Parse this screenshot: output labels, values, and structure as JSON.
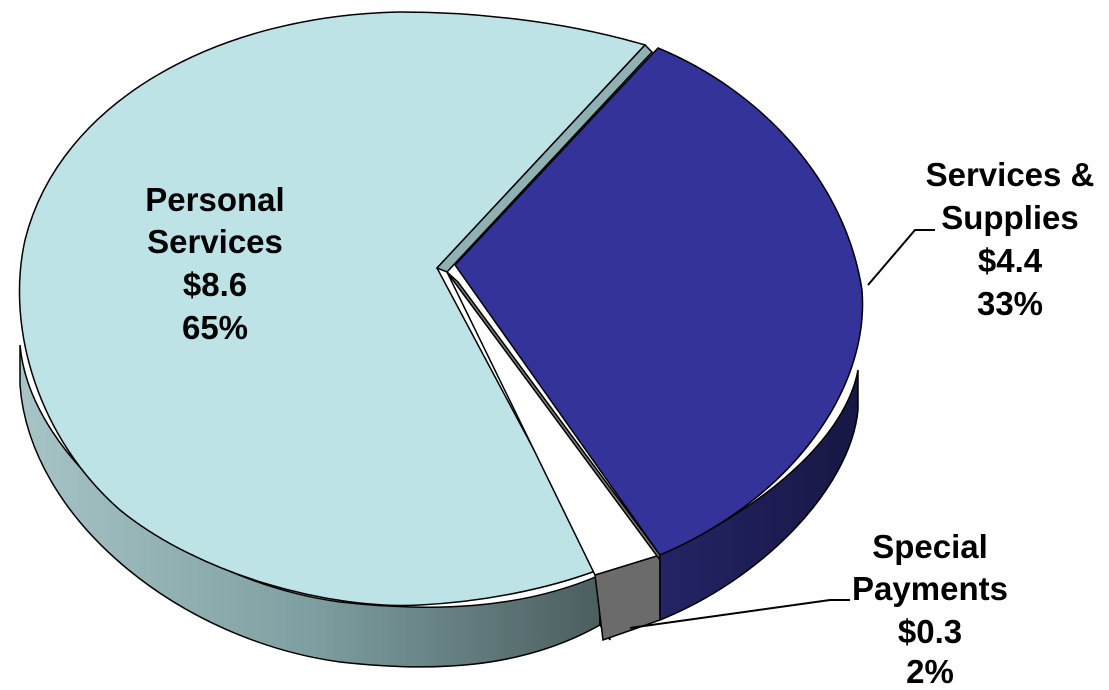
{
  "chart_data": {
    "type": "pie",
    "style": "3d-exploded",
    "slices": [
      {
        "name": "Personal Services",
        "label_lines": [
          "Personal",
          "Services"
        ],
        "value": 8.6,
        "value_label": "$8.6",
        "percent": 65,
        "percent_label": "65%",
        "color": "#bde3e7",
        "side_color": "#6e9698"
      },
      {
        "name": "Services & Supplies",
        "label_lines": [
          "Services &",
          "Supplies"
        ],
        "value": 4.4,
        "value_label": "$4.4",
        "percent": 33,
        "percent_label": "33%",
        "color": "#333399",
        "side_color": "#1c1c55"
      },
      {
        "name": "Special Payments",
        "label_lines": [
          "Special",
          "Payments"
        ],
        "value": 0.3,
        "value_label": "$0.3",
        "percent": 2,
        "percent_label": "2%",
        "color": "#ffffff",
        "side_color": "#6b6b6b"
      }
    ]
  }
}
